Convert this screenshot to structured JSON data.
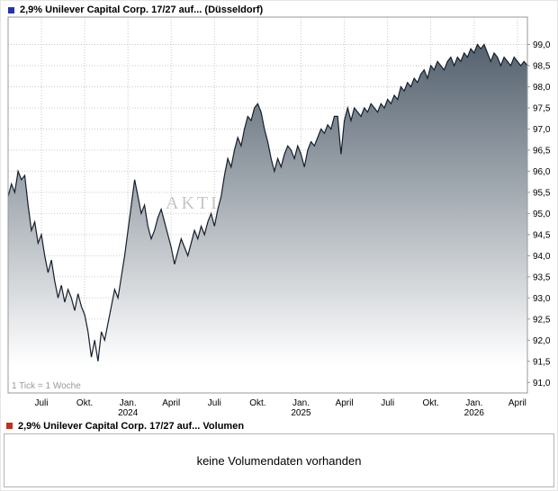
{
  "header": {
    "title": "2,9% Unilever Capital Corp. 17/27 auf... (Düsseldorf)",
    "marker_color": "#2433b0"
  },
  "volume": {
    "title": "2,9% Unilever Capital Corp. 17/27 auf... Volumen",
    "marker_color": "#c2311c",
    "empty_text": "keine Volumendaten vorhanden"
  },
  "chart_data": {
    "type": "area",
    "title": "2,9% Unilever Capital Corp. 17/27 auf... (Düsseldorf)",
    "tick_note": "1 Tick = 1 Woche",
    "watermark": "AKTIENCHECK.DE",
    "xlabel": "",
    "ylabel": "",
    "ylim": [
      91.0,
      99.0
    ],
    "y_tick_step": 0.5,
    "grid": true,
    "legend_position": "none",
    "line_color": "#151f2b",
    "fill_top": "#55626f",
    "fill_bottom": "#ffffff",
    "y_tick_labels": [
      "99,0",
      "98,5",
      "98,0",
      "97,5",
      "97,0",
      "96,5",
      "96,0",
      "95,5",
      "95,0",
      "94,5",
      "94,0",
      "93,5",
      "93,0",
      "92,5",
      "92,0",
      "91,5",
      "91,0"
    ],
    "x_tick_labels": [
      {
        "label": "Juli",
        "sub": ""
      },
      {
        "label": "Okt.",
        "sub": ""
      },
      {
        "label": "Jan.",
        "sub": "2024"
      },
      {
        "label": "April",
        "sub": ""
      },
      {
        "label": "Juli",
        "sub": ""
      },
      {
        "label": "Okt.",
        "sub": ""
      },
      {
        "label": "Jan.",
        "sub": "2025"
      },
      {
        "label": "April",
        "sub": ""
      },
      {
        "label": "Juli",
        "sub": ""
      },
      {
        "label": "Okt.",
        "sub": ""
      },
      {
        "label": "Jan.",
        "sub": "2026"
      },
      {
        "label": "April",
        "sub": ""
      }
    ],
    "x_tick_weeks": [
      10,
      23,
      36,
      49,
      62,
      75,
      88,
      101,
      114,
      127,
      140,
      153
    ],
    "series": [
      {
        "name": "Kurs",
        "values": [
          95.4,
          95.7,
          95.5,
          96.0,
          95.8,
          95.9,
          95.2,
          94.6,
          94.8,
          94.3,
          94.5,
          94.0,
          93.6,
          93.9,
          93.4,
          93.0,
          93.3,
          92.9,
          93.2,
          93.0,
          92.7,
          93.1,
          92.8,
          92.6,
          92.2,
          91.6,
          92.0,
          91.5,
          92.2,
          92.0,
          92.4,
          92.8,
          93.2,
          93.0,
          93.5,
          94.0,
          94.6,
          95.2,
          95.8,
          95.4,
          95.0,
          95.2,
          94.7,
          94.4,
          94.6,
          94.9,
          95.1,
          94.8,
          94.5,
          94.2,
          93.8,
          94.1,
          94.4,
          94.2,
          94.0,
          94.3,
          94.6,
          94.4,
          94.7,
          94.5,
          94.8,
          95.0,
          94.7,
          95.1,
          95.4,
          95.9,
          96.3,
          96.1,
          96.5,
          96.8,
          96.6,
          97.0,
          97.3,
          97.2,
          97.5,
          97.6,
          97.4,
          97.0,
          96.7,
          96.3,
          96.0,
          96.3,
          96.1,
          96.4,
          96.6,
          96.5,
          96.3,
          96.6,
          96.4,
          96.1,
          96.5,
          96.7,
          96.6,
          96.8,
          97.0,
          96.9,
          97.1,
          97.0,
          97.3,
          97.3,
          96.4,
          97.2,
          97.5,
          97.2,
          97.5,
          97.4,
          97.3,
          97.5,
          97.4,
          97.6,
          97.5,
          97.4,
          97.6,
          97.5,
          97.7,
          97.6,
          97.8,
          97.7,
          98.0,
          97.9,
          98.1,
          98.0,
          98.2,
          98.1,
          98.3,
          98.4,
          98.2,
          98.5,
          98.4,
          98.6,
          98.5,
          98.4,
          98.6,
          98.7,
          98.5,
          98.7,
          98.6,
          98.8,
          98.7,
          98.9,
          98.8,
          99.0,
          98.9,
          99.0,
          98.8,
          98.6,
          98.8,
          98.7,
          98.5,
          98.7,
          98.6,
          98.5,
          98.7,
          98.6,
          98.5,
          98.6,
          98.5
        ]
      }
    ]
  }
}
